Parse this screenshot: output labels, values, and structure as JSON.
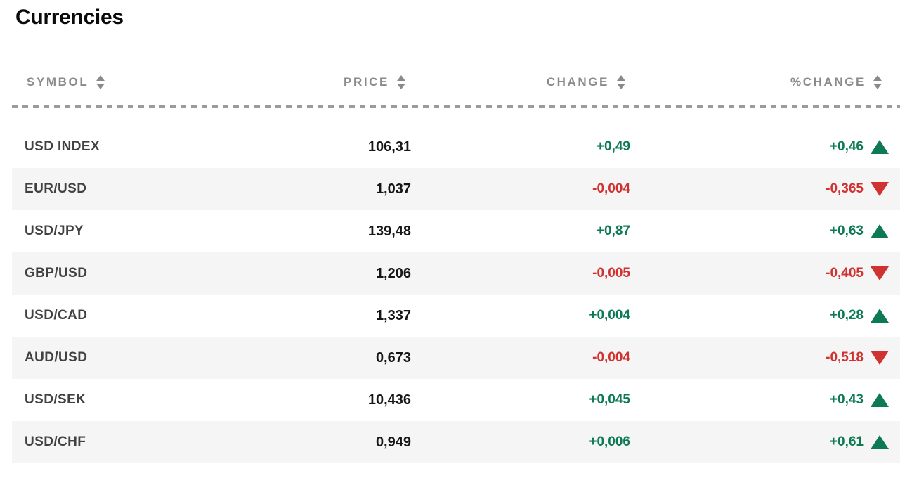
{
  "page": {
    "title": "Currencies"
  },
  "table": {
    "columns": [
      {
        "id": "symbol",
        "label": "SYMBOL",
        "sortable": true
      },
      {
        "id": "price",
        "label": "PRICE",
        "sortable": true
      },
      {
        "id": "change",
        "label": "CHANGE",
        "sortable": true
      },
      {
        "id": "pct_change",
        "label": "%CHANGE",
        "sortable": true
      }
    ],
    "rows": [
      {
        "symbol": "USD INDEX",
        "price": "106,31",
        "change": "+0,49",
        "pct_change": "+0,46",
        "direction": "up"
      },
      {
        "symbol": "EUR/USD",
        "price": "1,037",
        "change": "-0,004",
        "pct_change": "-0,365",
        "direction": "down"
      },
      {
        "symbol": "USD/JPY",
        "price": "139,48",
        "change": "+0,87",
        "pct_change": "+0,63",
        "direction": "up"
      },
      {
        "symbol": "GBP/USD",
        "price": "1,206",
        "change": "-0,005",
        "pct_change": "-0,405",
        "direction": "down"
      },
      {
        "symbol": "USD/CAD",
        "price": "1,337",
        "change": "+0,004",
        "pct_change": "+0,28",
        "direction": "up"
      },
      {
        "symbol": "AUD/USD",
        "price": "0,673",
        "change": "-0,004",
        "pct_change": "-0,518",
        "direction": "down"
      },
      {
        "symbol": "USD/SEK",
        "price": "10,436",
        "change": "+0,045",
        "pct_change": "+0,43",
        "direction": "up"
      },
      {
        "symbol": "USD/CHF",
        "price": "0,949",
        "change": "+0,006",
        "pct_change": "+0,61",
        "direction": "up"
      }
    ]
  },
  "icons": {
    "sort": "sort-updown-icon",
    "up": "triangle-up-icon",
    "down": "triangle-down-icon"
  },
  "colors": {
    "positive": "#0e7a53",
    "negative": "#d03131",
    "row_alt_bg": "#f5f5f5",
    "header_text": "#8a8a8a"
  }
}
